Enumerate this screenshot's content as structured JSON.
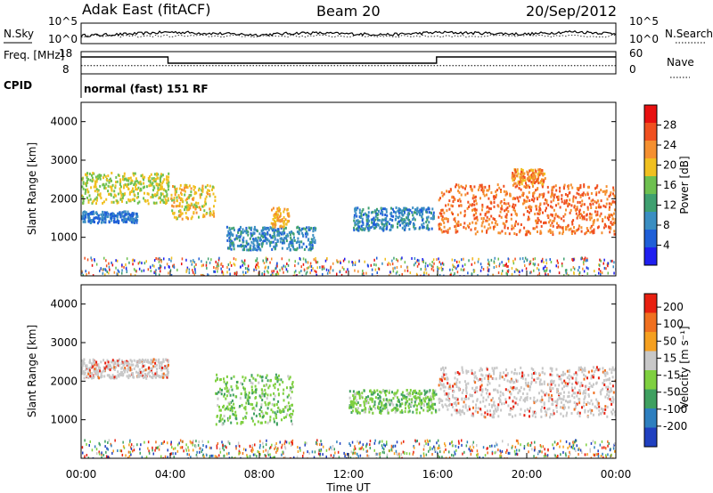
{
  "header": {
    "station": "Adak East (fitACF)",
    "beam": "Beam 20",
    "date": "20/Sep/2012"
  },
  "chart_data": [
    {
      "type": "line",
      "panel": "noise",
      "ylabel_left": "N.Sky",
      "ylabel_right": "N.Search",
      "ticks_left": [
        "10^5",
        "10^0"
      ],
      "ticks_right": [
        "10^5",
        "10^0"
      ],
      "yscale": "log",
      "series": [
        {
          "name": "N.Sky",
          "style": "solid"
        },
        {
          "name": "N.Search",
          "style": "dotted"
        }
      ],
      "level_log10": [
        2.0,
        2.4,
        3.0,
        2.6,
        2.2,
        2.8,
        2.5,
        2.3,
        2.9,
        2.7,
        2.4,
        3.1,
        2.6
      ]
    },
    {
      "type": "line",
      "panel": "frequency",
      "ylabel_left": "Freq. [MHz]",
      "ylabel_right": "Nave",
      "ticks_left": [
        "18",
        "8"
      ],
      "ticks_right": [
        "60",
        "0"
      ],
      "ylim_left": [
        8,
        18
      ],
      "ylim_right": [
        0,
        60
      ],
      "series": [
        {
          "name": "Freq.",
          "style": "solid",
          "x": [
            0.0,
            3.9,
            3.9,
            15.95,
            15.95,
            24.0
          ],
          "y": [
            15.6,
            15.6,
            12.8,
            12.8,
            15.6,
            15.6
          ]
        },
        {
          "name": "Nave",
          "style": "dotted",
          "x": [
            0.0,
            24.0
          ],
          "y": [
            22,
            22
          ]
        }
      ]
    },
    {
      "type": "heatmap",
      "panel": "cpid",
      "label": "CPID",
      "text": "normal (fast) 151 RF"
    },
    {
      "type": "heatmap",
      "panel": "power",
      "xlabel": "Time UT",
      "ylabel": "Slant Range [km]",
      "xlim": [
        0,
        24
      ],
      "ylim": [
        0,
        4500
      ],
      "xticks": [
        "00:00",
        "04:00",
        "08:00",
        "12:00",
        "16:00",
        "20:00",
        "00:00"
      ],
      "yticks": [
        1000,
        2000,
        3000,
        4000
      ],
      "colorbar": {
        "label": "Power [dB]",
        "ticks": [
          4,
          8,
          12,
          16,
          20,
          24,
          28
        ],
        "colors": [
          "#1f1ff0",
          "#1f5fd8",
          "#3a8ec2",
          "#3fa070",
          "#6ec050",
          "#f0c020",
          "#f59030",
          "#f05020",
          "#e81010"
        ]
      },
      "features": [
        {
          "t_start": 0.0,
          "t_end": 3.9,
          "range_start": 1900,
          "range_end": 2700,
          "level_db": 18
        },
        {
          "t_start": 0.0,
          "t_end": 2.5,
          "range_start": 1400,
          "range_end": 1700,
          "level_db": 6
        },
        {
          "t_start": 4.0,
          "t_end": 6.0,
          "range_start": 1500,
          "range_end": 2400,
          "level_db": 20
        },
        {
          "t_start": 6.5,
          "t_end": 10.5,
          "range_start": 700,
          "range_end": 1300,
          "level_db": 8
        },
        {
          "t_start": 8.5,
          "t_end": 9.3,
          "range_start": 1300,
          "range_end": 1800,
          "level_db": 22
        },
        {
          "t_start": 12.2,
          "t_end": 15.8,
          "range_start": 1200,
          "range_end": 1800,
          "level_db": 8
        },
        {
          "t_start": 16.0,
          "t_end": 24.0,
          "range_start": 1100,
          "range_end": 2400,
          "level_db": 26
        },
        {
          "t_start": 19.3,
          "t_end": 20.8,
          "range_start": 2400,
          "range_end": 2800,
          "level_db": 24
        }
      ]
    },
    {
      "type": "heatmap",
      "panel": "velocity",
      "xlabel": "Time UT",
      "ylabel": "Slant Range [km]",
      "xlim": [
        0,
        24
      ],
      "ylim": [
        0,
        4500
      ],
      "xticks": [
        "00:00",
        "04:00",
        "08:00",
        "12:00",
        "16:00",
        "20:00",
        "00:00"
      ],
      "yticks": [
        1000,
        2000,
        3000,
        4000
      ],
      "colorbar": {
        "label": "Velocity [m s⁻¹]",
        "ticks": [
          "200",
          "100",
          "50",
          "15",
          "-15",
          "-50",
          "-100",
          "-200"
        ],
        "colors": [
          "#2040c0",
          "#2e7fbf",
          "#3fa060",
          "#7fd040",
          "#c8c8c8",
          "#f5a020",
          "#f07020",
          "#e82010"
        ]
      },
      "features": [
        {
          "t_start": 0.0,
          "t_end": 3.9,
          "range_start": 2100,
          "range_end": 2600,
          "velocity": 0
        },
        {
          "t_start": 6.0,
          "t_end": 9.5,
          "range_start": 900,
          "range_end": 2200,
          "velocity": 40
        },
        {
          "t_start": 12.0,
          "t_end": 15.9,
          "range_start": 1200,
          "range_end": 1800,
          "velocity": 60
        },
        {
          "t_start": 16.0,
          "t_end": 24.0,
          "range_start": 1100,
          "range_end": 2400,
          "velocity": 0
        }
      ]
    }
  ]
}
